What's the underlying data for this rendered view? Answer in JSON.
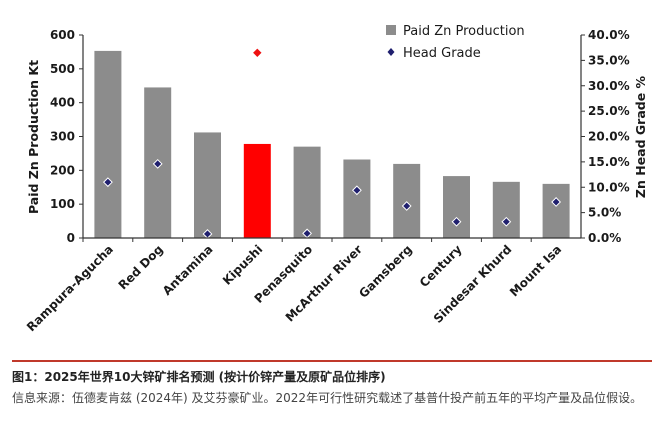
{
  "chart_data": {
    "type": "bar",
    "categories": [
      "Rampura-Agucha",
      "Red Dog",
      "Antamina",
      "Kipushi",
      "Penasquito",
      "McArthur River",
      "Gamsberg",
      "Century",
      "Sindesar Khurd",
      "Mount Isa"
    ],
    "series": [
      {
        "name": "Paid Zn Production",
        "type": "bar",
        "axis": "left",
        "values": [
          553,
          445,
          312,
          278,
          270,
          232,
          219,
          183,
          166,
          160
        ]
      },
      {
        "name": "Head Grade",
        "type": "scatter",
        "axis": "right",
        "values": [
          11.0,
          14.6,
          0.8,
          36.5,
          0.9,
          9.4,
          6.3,
          3.2,
          3.2,
          7.1
        ]
      }
    ],
    "highlight_index": 3,
    "ylabel": "Paid Zn Production Kt",
    "y2label": "Zn Head Grade %",
    "ylim": [
      0,
      600
    ],
    "y2lim": [
      0,
      40
    ],
    "yticks": [
      "0",
      "100",
      "200",
      "300",
      "400",
      "500",
      "600"
    ],
    "y2ticks": [
      "0.0%",
      "5.0%",
      "10.0%",
      "15.0%",
      "20.0%",
      "25.0%",
      "30.0%",
      "35.0%",
      "40.0%"
    ],
    "legend_position": "top-right",
    "grid": false,
    "colors": {
      "bar": "#8c8c8c",
      "bar_highlight": "#ff0000",
      "marker": "#1f1f6e",
      "marker_highlight": "#ee1111"
    }
  },
  "caption": {
    "title": "图1：2025年世界10大锌矿排名预测 (按计价锌产量及原矿品位排序)",
    "source": "信息来源：伍德麦肯兹 (2024年) 及艾芬豪矿业。2022年可行性研究载述了基普什投产前五年的平均产量及品位假设。"
  }
}
